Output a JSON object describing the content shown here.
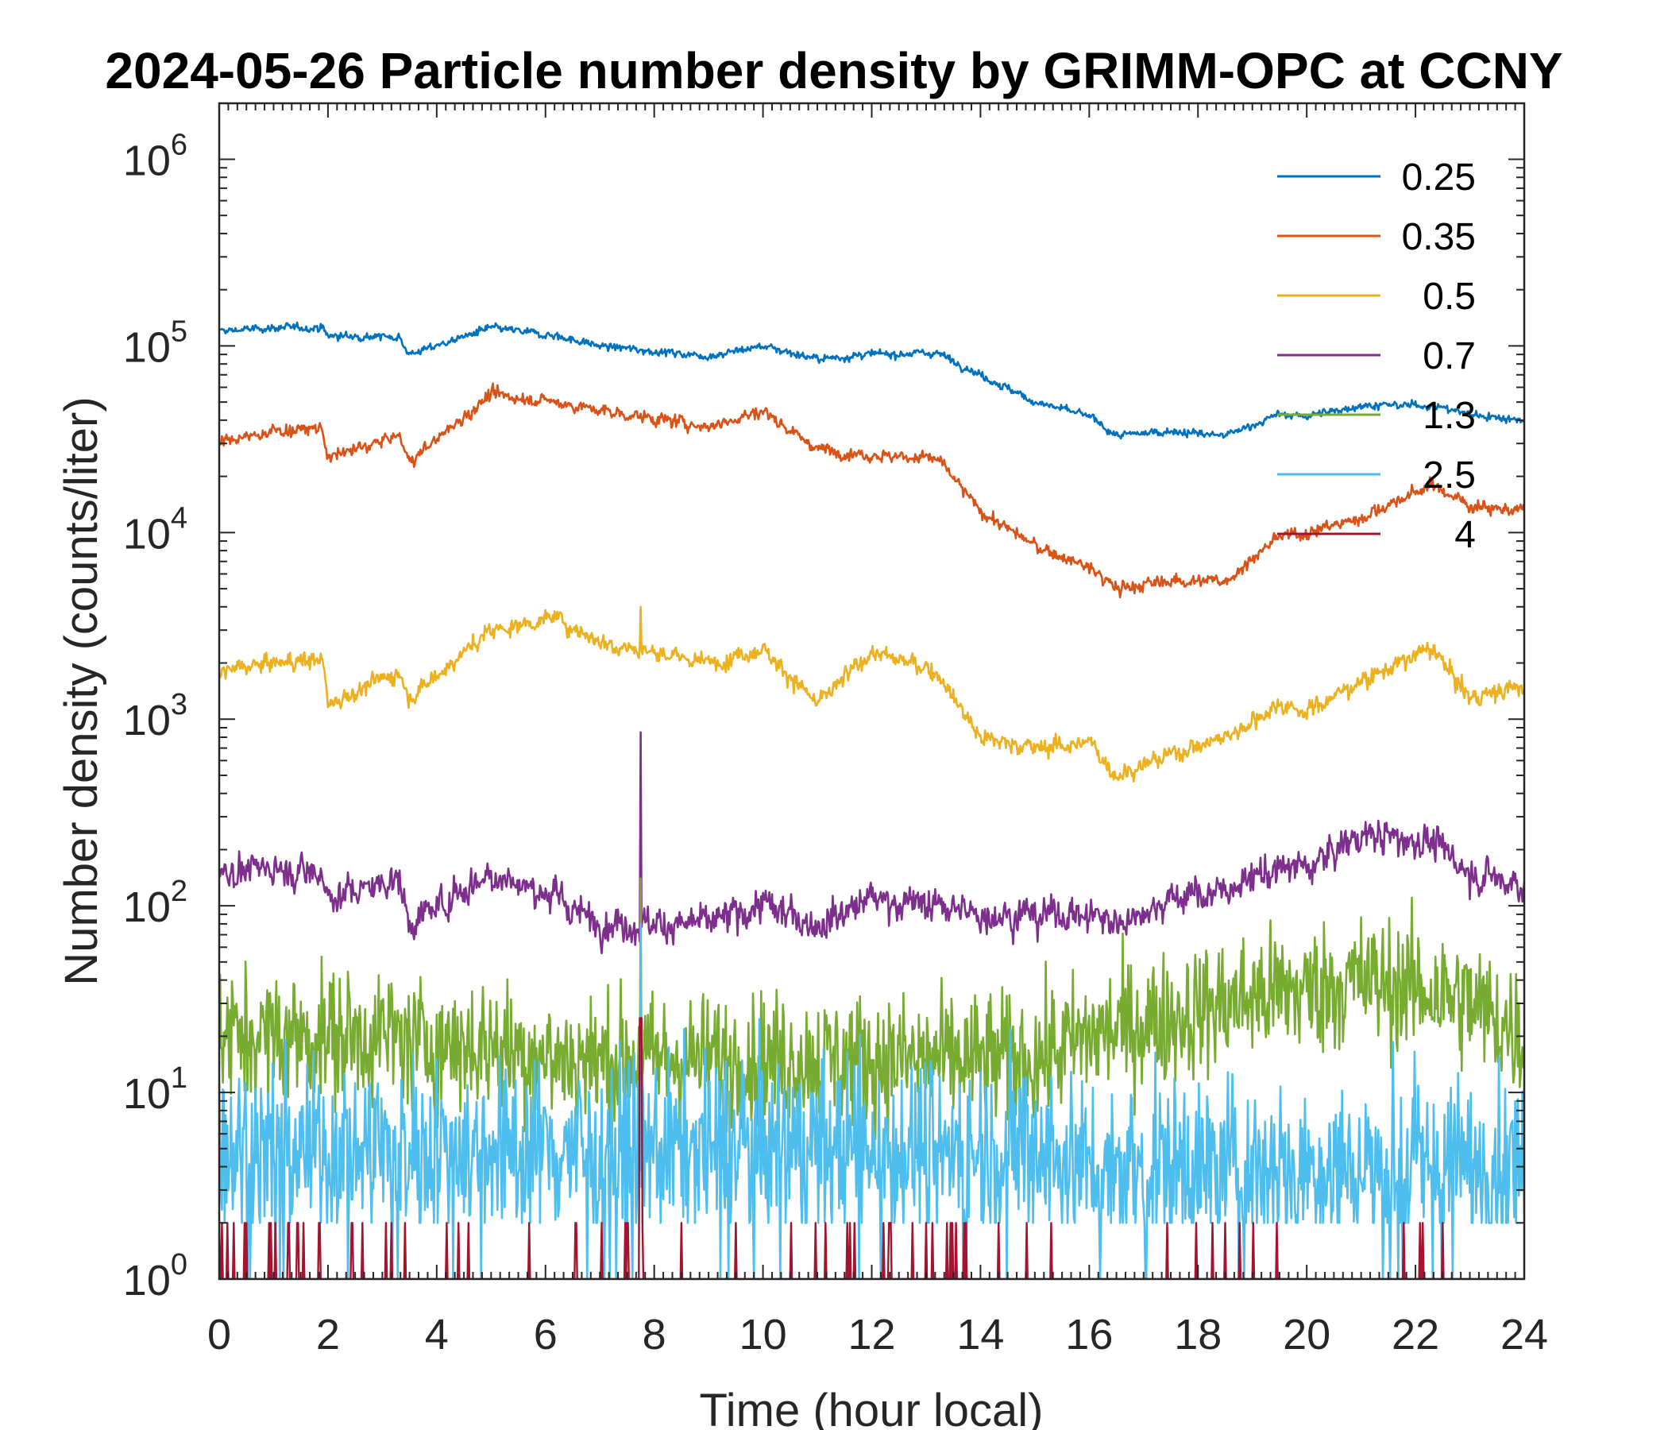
{
  "chart_data": {
    "type": "line",
    "title": "2024-05-26 Particle number density by GRIMM-OPC at CCNY",
    "xlabel": "Time (hour local)",
    "ylabel": "Number density (counts/liter)",
    "xlim": [
      0,
      24
    ],
    "ylim_log10": [
      0,
      6.3
    ],
    "yscale": "log",
    "x_ticks": [
      "0",
      "2",
      "4",
      "6",
      "8",
      "10",
      "12",
      "14",
      "16",
      "18",
      "20",
      "22",
      "24"
    ],
    "y_ticks": [
      {
        "base": "10",
        "exp": "0"
      },
      {
        "base": "10",
        "exp": "1"
      },
      {
        "base": "10",
        "exp": "2"
      },
      {
        "base": "10",
        "exp": "3"
      },
      {
        "base": "10",
        "exp": "4"
      },
      {
        "base": "10",
        "exp": "5"
      },
      {
        "base": "10",
        "exp": "6"
      }
    ],
    "legend_position": "top-right",
    "x": [
      0,
      1,
      1.9,
      2,
      3.3,
      3.5,
      5,
      6.2,
      7,
      9,
      10,
      11,
      12,
      13.2,
      14,
      15,
      16,
      16.5,
      17.5,
      18.5,
      19.5,
      20,
      21,
      22.3,
      23,
      24
    ],
    "series": [
      {
        "name": "0.25",
        "color": "#0072BD",
        "noise": 0.03,
        "values": [
          120000,
          125000,
          125000,
          113000,
          112000,
          90000,
          125000,
          113000,
          100000,
          88000,
          100000,
          85000,
          90000,
          92000,
          70000,
          50000,
          42000,
          33000,
          35000,
          33000,
          43000,
          42000,
          48000,
          48000,
          43000,
          40000
        ]
      },
      {
        "name": "0.35",
        "color": "#D95319",
        "noise": 0.05,
        "values": [
          30000,
          35000,
          36000,
          25000,
          33000,
          24000,
          55000,
          50000,
          45000,
          37000,
          45000,
          28000,
          26000,
          25000,
          13000,
          8500,
          6500,
          5000,
          5500,
          5500,
          9500,
          10000,
          12000,
          18000,
          14000,
          13000
        ]
      },
      {
        "name": "0.5",
        "color": "#EDB120",
        "noise": 0.07,
        "values": [
          1800,
          2000,
          2100,
          1200,
          1800,
          1300,
          3000,
          3500,
          2600,
          2000,
          2400,
          1200,
          2300,
          1800,
          800,
          700,
          750,
          500,
          650,
          800,
          1200,
          1100,
          1600,
          2400,
          1300,
          1500
        ]
      },
      {
        "name": "0.7",
        "color": "#7E2F8E",
        "noise": 0.13,
        "values": [
          150,
          160,
          150,
          110,
          140,
          80,
          150,
          110,
          80,
          80,
          100,
          80,
          110,
          100,
          90,
          90,
          90,
          80,
          110,
          120,
          160,
          160,
          240,
          220,
          150,
          130
        ]
      },
      {
        "name": "1.3",
        "color": "#77AC30",
        "noise": 0.22,
        "values": [
          20,
          20,
          20,
          20,
          20,
          18,
          18,
          15,
          15,
          15,
          15,
          15,
          15,
          15,
          15,
          15,
          20,
          22,
          25,
          30,
          35,
          35,
          40,
          35,
          30,
          20
        ]
      },
      {
        "name": "2.5",
        "color": "#4DBEEE",
        "noise": 0.3,
        "values": [
          5,
          5,
          5,
          5,
          5,
          5,
          5,
          5,
          5,
          5,
          5,
          5,
          5,
          5,
          5,
          5,
          4,
          4,
          4,
          4,
          4,
          4,
          4,
          4,
          4,
          4
        ]
      },
      {
        "name": "4",
        "color": "#A2142F",
        "noise": 0.0,
        "values": [
          1,
          1,
          1,
          1,
          1,
          1,
          1,
          1,
          1,
          1,
          1,
          1,
          1,
          1,
          1,
          1,
          1,
          1,
          1,
          1,
          1,
          1,
          1,
          1,
          1,
          1
        ]
      }
    ],
    "spikes": [
      {
        "series": "0.7",
        "x": 7.75,
        "value": 850
      },
      {
        "series": "0.5",
        "x": 7.75,
        "value": 4000
      },
      {
        "series": "1.3",
        "x": 7.75,
        "value": 140
      },
      {
        "series": "2.5",
        "x": 7.75,
        "value": 80
      }
    ]
  }
}
